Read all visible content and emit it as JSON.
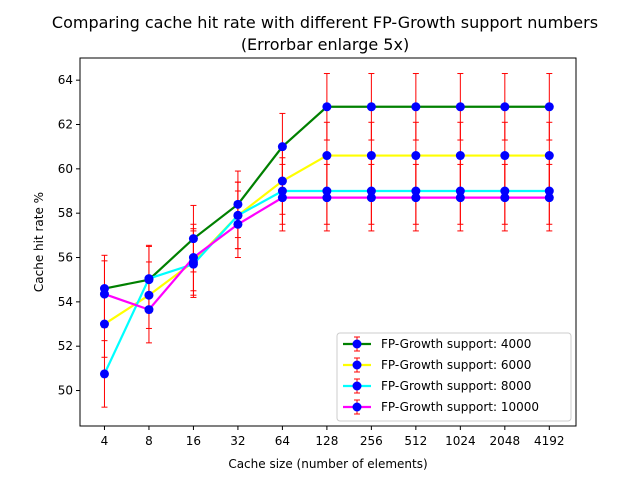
{
  "chart_data": {
    "type": "line",
    "title_line1": "Comparing cache hit rate with different FP-Growth support numbers",
    "title_line2": "(Errorbar enlarge 5x)",
    "xlabel": "Cache size (number of elements)",
    "ylabel": "Cache hit rate %",
    "categories": [
      "4",
      "8",
      "16",
      "32",
      "64",
      "128",
      "256",
      "512",
      "1024",
      "2048",
      "4192"
    ],
    "ylim": [
      48.4,
      65.0
    ],
    "yticks": [
      50,
      52,
      54,
      56,
      58,
      60,
      62,
      64
    ],
    "grid": false,
    "legend_position": "lower-right",
    "marker_color": "#0000ff",
    "errorbar_color": "#ff0000",
    "series": [
      {
        "name": "FP-Growth support: 4000",
        "color": "#008000",
        "values": [
          54.6,
          55.0,
          56.85,
          58.4,
          61.0,
          62.8,
          62.8,
          62.8,
          62.8,
          62.8,
          62.8
        ],
        "errors": [
          1.5,
          1.5,
          1.5,
          1.5,
          1.5,
          1.5,
          1.5,
          1.5,
          1.5,
          1.5,
          1.5
        ]
      },
      {
        "name": "FP-Growth support: 6000",
        "color": "#ffff00",
        "values": [
          53.0,
          54.3,
          55.8,
          57.9,
          59.45,
          60.6,
          60.6,
          60.6,
          60.6,
          60.6,
          60.6
        ],
        "errors": [
          1.5,
          1.5,
          1.5,
          1.5,
          1.5,
          1.5,
          1.5,
          1.5,
          1.5,
          1.5,
          1.5
        ]
      },
      {
        "name": "FP-Growth support: 8000",
        "color": "#00ffff",
        "values": [
          50.75,
          55.05,
          55.7,
          57.9,
          59.0,
          59.0,
          59.0,
          59.0,
          59.0,
          59.0,
          59.0
        ],
        "errors": [
          1.5,
          1.5,
          1.5,
          1.5,
          1.5,
          1.5,
          1.5,
          1.5,
          1.5,
          1.5,
          1.5
        ]
      },
      {
        "name": "FP-Growth support: 10000",
        "color": "#ff00ff",
        "values": [
          54.35,
          53.65,
          56.0,
          57.5,
          58.7,
          58.7,
          58.7,
          58.7,
          58.7,
          58.7,
          58.7
        ],
        "errors": [
          1.5,
          1.5,
          1.5,
          1.5,
          1.5,
          1.5,
          1.5,
          1.5,
          1.5,
          1.5,
          1.5
        ]
      }
    ]
  }
}
